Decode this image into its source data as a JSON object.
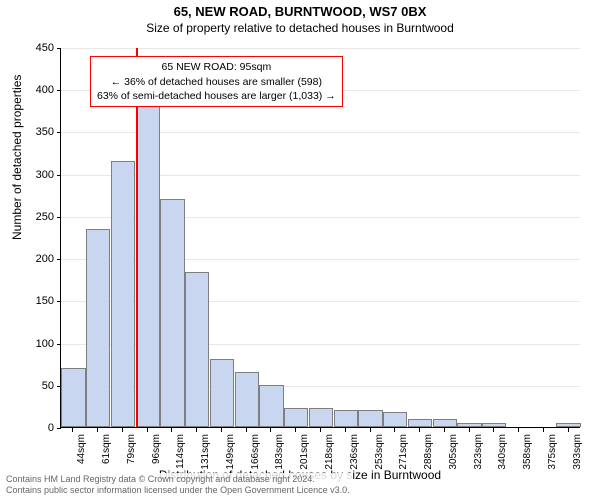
{
  "title": "65, NEW ROAD, BURNTWOOD, WS7 0BX",
  "subtitle": "Size of property relative to detached houses in Burntwood",
  "ylabel": "Number of detached properties",
  "xlabel": "Distribution of detached houses by size in Burntwood",
  "chart": {
    "type": "histogram",
    "bar_fill": "#c9d6ef",
    "bar_stroke": "#7f7f7f",
    "grid_color": "#e8e8e8",
    "background": "#ffffff",
    "ylim": [
      0,
      450
    ],
    "ytick_step": 50,
    "categories": [
      "44sqm",
      "61sqm",
      "79sqm",
      "96sqm",
      "114sqm",
      "131sqm",
      "149sqm",
      "166sqm",
      "183sqm",
      "201sqm",
      "218sqm",
      "236sqm",
      "253sqm",
      "271sqm",
      "288sqm",
      "305sqm",
      "323sqm",
      "340sqm",
      "358sqm",
      "375sqm",
      "393sqm"
    ],
    "values": [
      70,
      235,
      315,
      380,
      270,
      183,
      80,
      65,
      50,
      22,
      22,
      20,
      20,
      18,
      10,
      10,
      5,
      5,
      0,
      0,
      5
    ],
    "marker_category_index": 3,
    "marker_color": "#ff0000",
    "bar_width_ratio": 0.98
  },
  "annotation": {
    "line1": "65 NEW ROAD: 95sqm",
    "line2": "← 36% of detached houses are smaller (598)",
    "line3": "63% of semi-detached houses are larger (1,033) →",
    "border_color": "#ff0000",
    "background": "#ffffff",
    "fontsize": 10.5
  },
  "footer": {
    "line1": "Contains HM Land Registry data © Crown copyright and database right 2024.",
    "line2": "Contains public sector information licensed under the Open Government Licence v3.0."
  },
  "fonts": {
    "title_size": 13,
    "subtitle_size": 12,
    "axis_label_size": 12,
    "tick_size": 11
  }
}
